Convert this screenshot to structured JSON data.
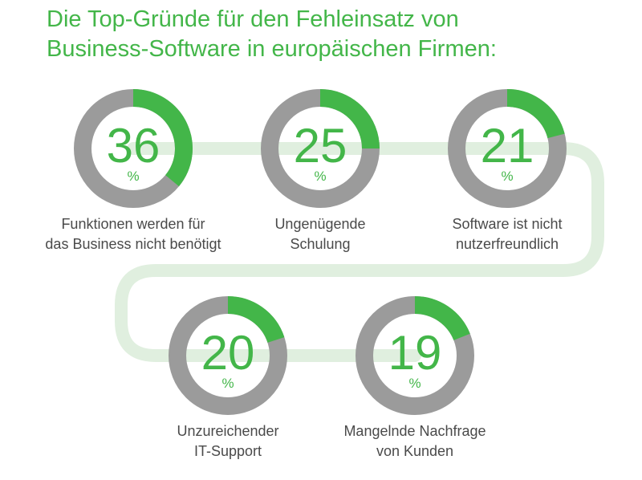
{
  "title_lines": [
    "Die Top-Gründe für den Fehleinsatz von",
    "Business-Software in europäischen Firmen:"
  ],
  "colors": {
    "accent": "#43b649",
    "ring_track": "#9b9b9b",
    "connector": "#e0efdf",
    "label": "#4a4a4a"
  },
  "chart_data": {
    "type": "pie",
    "title": "Die Top-Gründe für den Fehleinsatz von Business-Software in europäischen Firmen:",
    "unit": "%",
    "categories": [
      [
        "Funktionen werden für",
        "das Business nicht benötigt"
      ],
      [
        "Ungenügende",
        "Schulung"
      ],
      [
        "Software ist nicht",
        "nutzerfreundlich"
      ],
      [
        "Unzureichender",
        "IT-Support"
      ],
      [
        "Mangelnde Nachfrage",
        "von Kunden"
      ]
    ],
    "values": [
      36,
      25,
      21,
      20,
      19
    ],
    "scale_max": 100
  }
}
